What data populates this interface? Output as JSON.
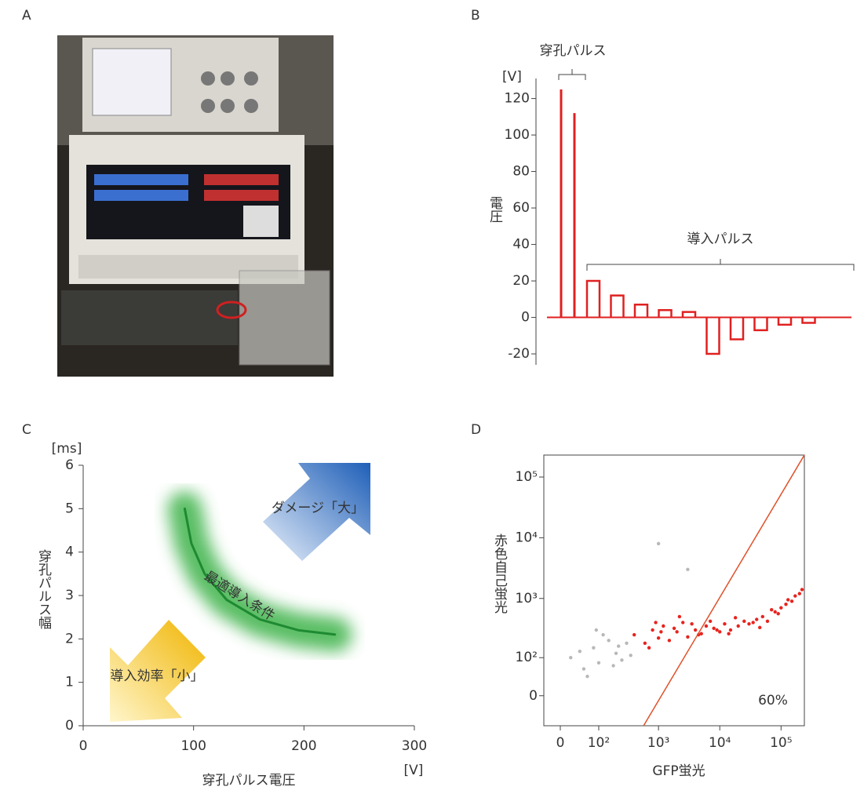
{
  "panel_labels": [
    "A",
    "B",
    "C",
    "D"
  ],
  "chart_data": [
    {
      "type": "pulse",
      "y_label": "電圧",
      "y_unit": "[V]",
      "color": "#e02020",
      "ylim": [
        -26,
        131
      ],
      "yticks": [
        -20,
        0,
        20,
        40,
        60,
        80,
        100,
        120
      ],
      "series": [
        {
          "label": "穿孔パルス",
          "values": [
            125,
            112
          ]
        },
        {
          "label": "導入パルス",
          "values": [
            20,
            12,
            7,
            4,
            3,
            -20,
            -12,
            -7,
            -4,
            -3
          ]
        }
      ]
    },
    {
      "type": "line",
      "x_label": "穿孔パルス電圧",
      "x_unit": "[V]",
      "y_label": "穿孔パルス幅",
      "y_unit": "[ms]",
      "xlim": [
        0,
        300
      ],
      "xticks": [
        0,
        100,
        200,
        300
      ],
      "ylim": [
        0,
        6
      ],
      "yticks": [
        0,
        1,
        2,
        3,
        4,
        5,
        6
      ],
      "color": "#1e8a32",
      "x": [
        92,
        98,
        110,
        130,
        160,
        195,
        228
      ],
      "values": [
        5,
        4.2,
        3.5,
        2.9,
        2.45,
        2.2,
        2.1
      ],
      "annotations": [
        "最適導入条件",
        "ダメージ「大」",
        "導入効率「小」"
      ]
    },
    {
      "type": "scatter",
      "x_label": "GFP蛍光",
      "y_label": "赤色自己蛍光",
      "scale": "asinh",
      "xlim": [
        -33,
        240000
      ],
      "ylim": [
        -70,
        230000
      ],
      "xticks": [
        0,
        {
          "value": 100,
          "label": "10²"
        },
        {
          "value": 1000,
          "label": "10³"
        },
        {
          "value": 10000,
          "label": "10⁴"
        },
        {
          "value": 100000,
          "label": "10⁵"
        }
      ],
      "yticks": [
        0,
        {
          "value": 100,
          "label": "10²"
        },
        {
          "value": 1000,
          "label": "10³"
        },
        {
          "value": 10000,
          "label": "10⁴"
        },
        {
          "value": 100000,
          "label": "10⁵"
        }
      ],
      "series": [
        {
          "color": "#e8231e",
          "x": [
            400,
            600,
            800,
            1000,
            1200,
            1500,
            2000,
            2500,
            3000,
            4000,
            5000,
            6000,
            8000,
            10000,
            12000,
            15000,
            20000,
            25000,
            30000,
            40000,
            50000,
            60000,
            80000,
            100000,
            120000,
            150000,
            200000,
            700,
            900,
            1100,
            1800,
            2200,
            3500,
            4500,
            7000,
            9000,
            14000,
            18000,
            35000,
            45000,
            70000,
            90000,
            130000,
            170000,
            220000
          ],
          "y": [
            250,
            180,
            300,
            220,
            350,
            200,
            280,
            400,
            230,
            300,
            260,
            350,
            320,
            280,
            380,
            300,
            350,
            420,
            380,
            450,
            500,
            420,
            600,
            700,
            800,
            900,
            1200,
            150,
            400,
            280,
            320,
            500,
            380,
            250,
            420,
            300,
            260,
            480,
            400,
            330,
            650,
            560,
            950,
            1100,
            1400
          ]
        },
        {
          "color": "#b8b8b8",
          "x": [
            20,
            50,
            80,
            100,
            150,
            200,
            250,
            300,
            60,
            120,
            180,
            40,
            90,
            220,
            350,
            1000,
            3000
          ],
          "y": [
            100,
            60,
            150,
            80,
            200,
            120,
            90,
            180,
            40,
            250,
            70,
            130,
            300,
            160,
            110,
            8000,
            3000
          ]
        }
      ],
      "line": {
        "color": "#e0502a",
        "x": [
          570,
          240000
        ],
        "y": [
          -70,
          230000
        ]
      },
      "annotation": "60%",
      "annotation_color": "#e8231e"
    }
  ]
}
